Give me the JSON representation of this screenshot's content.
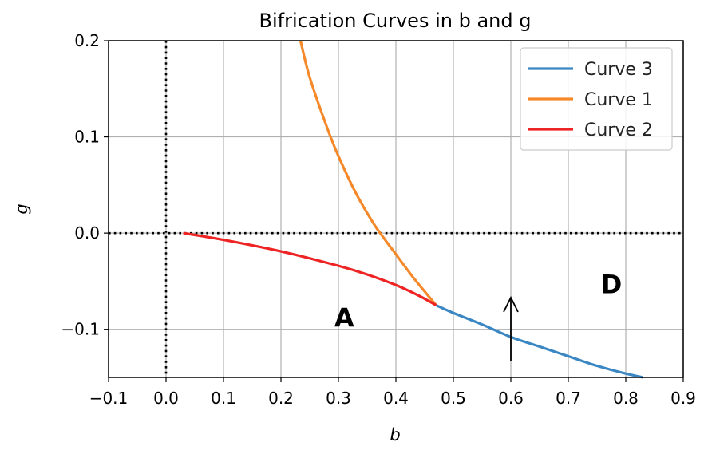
{
  "chart_data": {
    "type": "line",
    "title": "Bifrication Curves in b and g",
    "xlabel": "b",
    "ylabel": "g",
    "xlim": [
      -0.1,
      0.9
    ],
    "ylim": [
      -0.15,
      0.2
    ],
    "x_ticks": [
      -0.1,
      0.0,
      0.1,
      0.2,
      0.3,
      0.4,
      0.5,
      0.6,
      0.7,
      0.8,
      0.9
    ],
    "x_tick_labels": [
      "−0.1",
      "0.0",
      "0.1",
      "0.2",
      "0.3",
      "0.4",
      "0.5",
      "0.6",
      "0.7",
      "0.8",
      "0.9"
    ],
    "y_ticks": [
      -0.1,
      0.0,
      0.1,
      0.2
    ],
    "y_tick_labels": [
      "−0.1",
      "0.0",
      "0.1",
      "0.2"
    ],
    "grid": true,
    "legend_position": "top-right",
    "series": [
      {
        "name": "Curve 3",
        "color": "#3a87c3",
        "x": [
          0.47,
          0.5,
          0.55,
          0.6,
          0.65,
          0.7,
          0.75,
          0.8,
          0.83
        ],
        "y": [
          -0.075,
          -0.083,
          -0.095,
          -0.108,
          -0.118,
          -0.128,
          -0.138,
          -0.146,
          -0.15
        ]
      },
      {
        "name": "Curve 1",
        "color": "#f5892a",
        "x": [
          0.234,
          0.25,
          0.28,
          0.3,
          0.33,
          0.36,
          0.38,
          0.4,
          0.43,
          0.47
        ],
        "y": [
          0.2,
          0.162,
          0.11,
          0.08,
          0.042,
          0.011,
          -0.006,
          -0.022,
          -0.046,
          -0.075
        ]
      },
      {
        "name": "Curve 2",
        "color": "#ee2424",
        "x": [
          0.03,
          0.1,
          0.2,
          0.3,
          0.35,
          0.4,
          0.44,
          0.47
        ],
        "y": [
          0.0,
          -0.007,
          -0.019,
          -0.034,
          -0.043,
          -0.054,
          -0.065,
          -0.075
        ]
      }
    ],
    "reference_lines": [
      {
        "orientation": "horizontal",
        "value": 0.0,
        "style": "dotted"
      },
      {
        "orientation": "vertical",
        "value": 0.0,
        "style": "dotted"
      }
    ],
    "annotations": [
      {
        "text": "A",
        "x": 0.31,
        "y": -0.09
      },
      {
        "text": "D",
        "x": 0.775,
        "y": -0.055
      }
    ],
    "arrow": {
      "x": 0.6,
      "y_start": -0.133,
      "y_end": -0.067
    }
  }
}
